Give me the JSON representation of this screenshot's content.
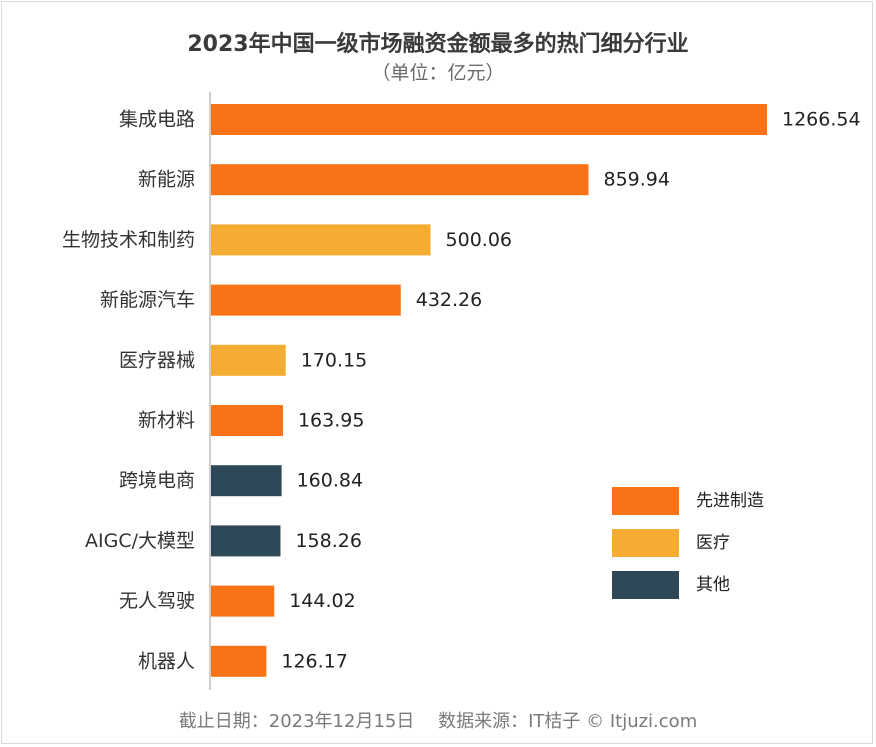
{
  "title": "2023年中国一级市场融资金额最多的热门细分行业",
  "subtitle": "（单位：亿元）",
  "footer": "截止日期：2023年12月15日　 数据来源：IT桔子 © Itjuzi.com",
  "colors": {
    "先进制造": "#f97316",
    "医疗": "#f5ac32",
    "其他": "#2f4858"
  },
  "chart_data": {
    "type": "bar",
    "orientation": "horizontal",
    "title": "2023年中国一级市场融资金额最多的热门细分行业",
    "subtitle": "（单位：亿元）",
    "unit": "亿元",
    "xlim": [
      0,
      1266.54
    ],
    "legend_position": "right",
    "legend": [
      "先进制造",
      "医疗",
      "其他"
    ],
    "categories": [
      "集成电路",
      "新能源",
      "生物技术和制药",
      "新能源汽车",
      "医疗器械",
      "新材料",
      "跨境电商",
      "AIGC/大模型",
      "无人驾驶",
      "机器人"
    ],
    "values": [
      1266.54,
      859.94,
      500.06,
      432.26,
      170.15,
      163.95,
      160.84,
      158.26,
      144.02,
      126.17
    ],
    "value_labels": [
      "1266.54",
      "859.94",
      "500.06",
      "432.26",
      "170.15",
      "163.95",
      "160.84",
      "158.26",
      "144.02",
      "126.17"
    ],
    "groups": [
      "先进制造",
      "先进制造",
      "医疗",
      "先进制造",
      "医疗",
      "先进制造",
      "其他",
      "其他",
      "先进制造",
      "先进制造"
    ]
  }
}
